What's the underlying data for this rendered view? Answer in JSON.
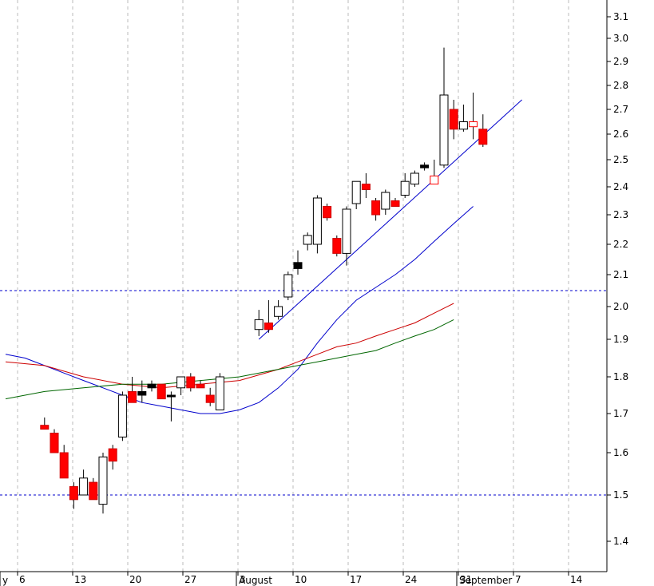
{
  "chart_data": {
    "type": "candlestick",
    "title": "",
    "xlabel": "",
    "ylabel": "",
    "ylim": [
      1.35,
      3.15
    ],
    "y_ticks": [
      "1.4",
      "1.5",
      "1.6",
      "1.7",
      "1.8",
      "1.9",
      "2.0",
      "2.1",
      "2.2",
      "2.3",
      "2.4",
      "2.5",
      "2.6",
      "2.7",
      "2.8",
      "2.9",
      "3.0",
      "3.1"
    ],
    "x_tick_labels": [
      {
        "label": "6",
        "day": 6
      },
      {
        "label": "13",
        "day": 13
      },
      {
        "label": "20",
        "day": 20
      },
      {
        "label": "27",
        "day": 27
      },
      {
        "label": "3",
        "day": 34
      },
      {
        "label": "10",
        "day": 41
      },
      {
        "label": "17",
        "day": 48
      },
      {
        "label": "24",
        "day": 55
      },
      {
        "label": "31",
        "day": 62
      },
      {
        "label": "7",
        "day": 69
      },
      {
        "label": "14",
        "day": 76
      }
    ],
    "month_labels": [
      {
        "label": "y",
        "day": 0
      },
      {
        "label": "August",
        "day": 31
      },
      {
        "label": "September",
        "day": 62
      }
    ],
    "horizontal_levels": [
      2.05,
      1.5
    ],
    "grid": "vertical-dashed",
    "candles": [
      {
        "d": 4,
        "o": 1.67,
        "h": 1.69,
        "l": 1.66,
        "c": 1.66
      },
      {
        "d": 5,
        "o": 1.65,
        "h": 1.66,
        "l": 1.6,
        "c": 1.6
      },
      {
        "d": 6,
        "o": 1.6,
        "h": 1.62,
        "l": 1.54,
        "c": 1.54
      },
      {
        "d": 7,
        "o": 1.52,
        "h": 1.53,
        "l": 1.47,
        "c": 1.49
      },
      {
        "d": 8,
        "o": 1.5,
        "h": 1.56,
        "l": 1.5,
        "c": 1.54
      },
      {
        "d": 9,
        "o": 1.53,
        "h": 1.54,
        "l": 1.49,
        "c": 1.49
      },
      {
        "d": 10,
        "o": 1.48,
        "h": 1.6,
        "l": 1.46,
        "c": 1.59
      },
      {
        "d": 11,
        "o": 1.61,
        "h": 1.62,
        "l": 1.56,
        "c": 1.58
      },
      {
        "d": 12,
        "o": 1.64,
        "h": 1.76,
        "l": 1.63,
        "c": 1.75
      },
      {
        "d": 13,
        "o": 1.76,
        "h": 1.8,
        "l": 1.73,
        "c": 1.73
      },
      {
        "d": 14,
        "o": 1.75,
        "h": 1.79,
        "l": 1.73,
        "c": 1.76,
        "solid": true
      },
      {
        "d": 15,
        "o": 1.77,
        "h": 1.79,
        "l": 1.76,
        "c": 1.78,
        "solid": true
      },
      {
        "d": 16,
        "o": 1.78,
        "h": 1.78,
        "l": 1.74,
        "c": 1.74
      },
      {
        "d": 17,
        "o": 1.75,
        "h": 1.76,
        "l": 1.68,
        "c": 1.75,
        "solid": true
      },
      {
        "d": 18,
        "o": 1.77,
        "h": 1.8,
        "l": 1.75,
        "c": 1.8
      },
      {
        "d": 19,
        "o": 1.8,
        "h": 1.81,
        "l": 1.76,
        "c": 1.77
      },
      {
        "d": 20,
        "o": 1.78,
        "h": 1.79,
        "l": 1.77,
        "c": 1.77
      },
      {
        "d": 21,
        "o": 1.75,
        "h": 1.77,
        "l": 1.72,
        "c": 1.73
      },
      {
        "d": 22,
        "o": 1.71,
        "h": 1.81,
        "l": 1.71,
        "c": 1.8
      },
      {
        "d": 26,
        "o": 1.93,
        "h": 1.99,
        "l": 1.91,
        "c": 1.96
      },
      {
        "d": 27,
        "o": 1.95,
        "h": 2.02,
        "l": 1.92,
        "c": 1.93
      },
      {
        "d": 28,
        "o": 1.97,
        "h": 2.02,
        "l": 1.96,
        "c": 2.0
      },
      {
        "d": 29,
        "o": 2.03,
        "h": 2.11,
        "l": 2.02,
        "c": 2.1
      },
      {
        "d": 30,
        "o": 2.12,
        "h": 2.18,
        "l": 2.1,
        "c": 2.14,
        "solid": true
      },
      {
        "d": 31,
        "o": 2.2,
        "h": 2.24,
        "l": 2.18,
        "c": 2.23
      },
      {
        "d": 32,
        "o": 2.2,
        "h": 2.37,
        "l": 2.17,
        "c": 2.36
      },
      {
        "d": 33,
        "o": 2.33,
        "h": 2.34,
        "l": 2.28,
        "c": 2.29
      },
      {
        "d": 34,
        "o": 2.22,
        "h": 2.23,
        "l": 2.16,
        "c": 2.17
      },
      {
        "d": 35,
        "o": 2.17,
        "h": 2.33,
        "l": 2.13,
        "c": 2.32
      },
      {
        "d": 36,
        "o": 2.34,
        "h": 2.42,
        "l": 2.32,
        "c": 2.42
      },
      {
        "d": 37,
        "o": 2.41,
        "h": 2.45,
        "l": 2.36,
        "c": 2.39
      },
      {
        "d": 38,
        "o": 2.35,
        "h": 2.36,
        "l": 2.28,
        "c": 2.3
      },
      {
        "d": 39,
        "o": 2.32,
        "h": 2.39,
        "l": 2.3,
        "c": 2.38
      },
      {
        "d": 40,
        "o": 2.35,
        "h": 2.36,
        "l": 2.33,
        "c": 2.33
      },
      {
        "d": 41,
        "o": 2.37,
        "h": 2.45,
        "l": 2.36,
        "c": 2.42
      },
      {
        "d": 42,
        "o": 2.41,
        "h": 2.46,
        "l": 2.4,
        "c": 2.45
      },
      {
        "d": 43,
        "o": 2.48,
        "h": 2.49,
        "l": 2.46,
        "c": 2.47,
        "solid": true
      },
      {
        "d": 44,
        "o": 2.44,
        "h": 2.5,
        "l": 2.41,
        "c": 2.41,
        "hollowRed": true
      },
      {
        "d": 45,
        "o": 2.48,
        "h": 2.96,
        "l": 2.47,
        "c": 2.76
      },
      {
        "d": 46,
        "o": 2.7,
        "h": 2.74,
        "l": 2.58,
        "c": 2.62
      },
      {
        "d": 47,
        "o": 2.62,
        "h": 2.72,
        "l": 2.61,
        "c": 2.65
      },
      {
        "d": 48,
        "o": 2.65,
        "h": 2.77,
        "l": 2.58,
        "c": 2.63,
        "hollowRed": true
      },
      {
        "d": 49,
        "o": 2.62,
        "h": 2.68,
        "l": 2.55,
        "c": 2.56
      }
    ],
    "series": [
      {
        "color": "#0000cc",
        "points": [
          [
            0,
            1.86
          ],
          [
            2,
            1.85
          ],
          [
            4,
            1.83
          ],
          [
            6,
            1.81
          ],
          [
            8,
            1.79
          ],
          [
            10,
            1.77
          ],
          [
            12,
            1.75
          ],
          [
            14,
            1.73
          ],
          [
            16,
            1.72
          ],
          [
            18,
            1.71
          ],
          [
            20,
            1.7
          ],
          [
            22,
            1.7
          ],
          [
            24,
            1.71
          ],
          [
            26,
            1.73
          ],
          [
            28,
            1.77
          ],
          [
            30,
            1.82
          ],
          [
            32,
            1.89
          ],
          [
            34,
            1.96
          ],
          [
            36,
            2.02
          ],
          [
            38,
            2.06
          ],
          [
            40,
            2.1
          ],
          [
            42,
            2.15
          ],
          [
            44,
            2.21
          ],
          [
            46,
            2.27
          ],
          [
            48,
            2.33
          ]
        ]
      },
      {
        "color": "#cc0000",
        "points": [
          [
            0,
            1.84
          ],
          [
            4,
            1.83
          ],
          [
            8,
            1.8
          ],
          [
            12,
            1.78
          ],
          [
            16,
            1.77
          ],
          [
            20,
            1.78
          ],
          [
            24,
            1.79
          ],
          [
            28,
            1.82
          ],
          [
            30,
            1.84
          ],
          [
            32,
            1.86
          ],
          [
            34,
            1.88
          ],
          [
            36,
            1.89
          ],
          [
            38,
            1.91
          ],
          [
            40,
            1.93
          ],
          [
            42,
            1.95
          ],
          [
            44,
            1.98
          ],
          [
            46,
            2.01
          ]
        ]
      },
      {
        "color": "#006600",
        "points": [
          [
            0,
            1.74
          ],
          [
            4,
            1.76
          ],
          [
            8,
            1.77
          ],
          [
            12,
            1.78
          ],
          [
            16,
            1.78
          ],
          [
            20,
            1.79
          ],
          [
            24,
            1.8
          ],
          [
            28,
            1.82
          ],
          [
            30,
            1.83
          ],
          [
            32,
            1.84
          ],
          [
            34,
            1.85
          ],
          [
            36,
            1.86
          ],
          [
            38,
            1.87
          ],
          [
            40,
            1.89
          ],
          [
            42,
            1.91
          ],
          [
            44,
            1.93
          ],
          [
            46,
            1.96
          ]
        ]
      },
      {
        "color": "#0000cc",
        "points": [
          [
            26,
            1.9
          ],
          [
            53,
            2.74
          ]
        ]
      }
    ]
  }
}
